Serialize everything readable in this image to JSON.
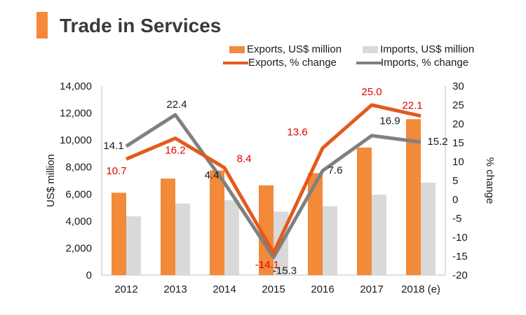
{
  "title": "Trade in Services",
  "colors": {
    "exports_bar": "#f28a3a",
    "imports_bar": "#d9d9d9",
    "exports_line": "#e35a1c",
    "imports_line": "#808080",
    "title_accent": "#f28a3a",
    "exports_label": "#e30000",
    "imports_label": "#1a1a1a"
  },
  "legend": {
    "exports_bar": "Exports, US$ million",
    "imports_bar": "Imports, US$ million",
    "exports_line": "Exports, % change",
    "imports_line": "Imports, % change"
  },
  "chart_data": {
    "type": "bar",
    "title": "Trade in Services",
    "categories": [
      "2012",
      "2013",
      "2014",
      "2015",
      "2016",
      "2017",
      "2018 (e)"
    ],
    "ylabel": "US$ million",
    "y2label": "% change",
    "ylim": [
      0,
      14000
    ],
    "y2lim": [
      -20,
      30
    ],
    "yticks": [
      "0",
      "2,000",
      "4,000",
      "6,000",
      "8,000",
      "10,000",
      "12,000",
      "14,000"
    ],
    "y2ticks": [
      "-20",
      "-15",
      "-10",
      "-5",
      "0",
      "5",
      "10",
      "15",
      "20",
      "25",
      "30"
    ],
    "bar_series": [
      {
        "name": "Exports, US$ million",
        "values": [
          6100,
          7150,
          7750,
          6650,
          7550,
          9450,
          11550
        ]
      },
      {
        "name": "Imports, US$ million",
        "values": [
          4350,
          5300,
          5550,
          4700,
          5100,
          5950,
          6850
        ]
      }
    ],
    "line_series": [
      {
        "name": "Exports, % change",
        "values": [
          10.7,
          16.2,
          8.4,
          -14.1,
          13.6,
          25.0,
          22.1
        ],
        "labels": [
          "10.7",
          "16.2",
          "8.4",
          "-14.1",
          "13.6",
          "25.0",
          "22.1"
        ]
      },
      {
        "name": "Imports, % change",
        "values": [
          14.1,
          22.4,
          4.4,
          -15.3,
          7.6,
          16.9,
          15.2
        ],
        "labels": [
          "14.1",
          "22.4",
          "4.4",
          "-15.3",
          "7.6",
          "16.9",
          "15.2"
        ]
      }
    ]
  }
}
